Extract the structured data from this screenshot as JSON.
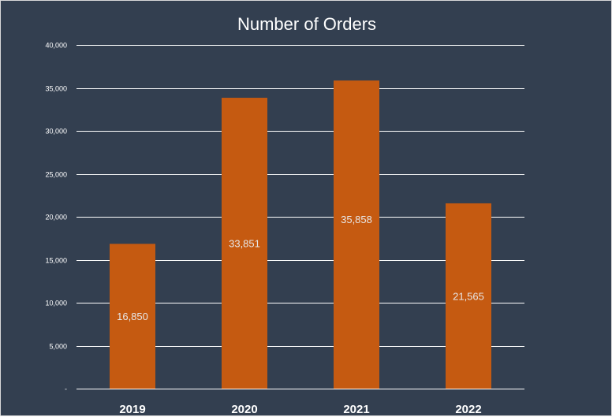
{
  "chart_data": {
    "type": "bar",
    "title": "Number of Orders",
    "xlabel": "",
    "ylabel": "",
    "categories": [
      "2019",
      "2020",
      "2021",
      "2022"
    ],
    "values": [
      16850,
      33851,
      35858,
      21565
    ],
    "data_labels": [
      "16,850",
      "33,851",
      "35,858",
      "21,565"
    ],
    "yticks": [
      0,
      5000,
      10000,
      15000,
      20000,
      25000,
      30000,
      35000,
      40000
    ],
    "ytick_labels": [
      "-",
      "5,000",
      "10,000",
      "15,000",
      "20,000",
      "25,000",
      "30,000",
      "35,000",
      "40,000"
    ],
    "ylim": [
      0,
      40000
    ],
    "grid": true,
    "legend": "none",
    "colors": {
      "background": "#333f50",
      "bar": "#c55a11",
      "gridline": "#ffffff",
      "text": "#ffffff",
      "data_label": "#e7e6e6"
    }
  }
}
